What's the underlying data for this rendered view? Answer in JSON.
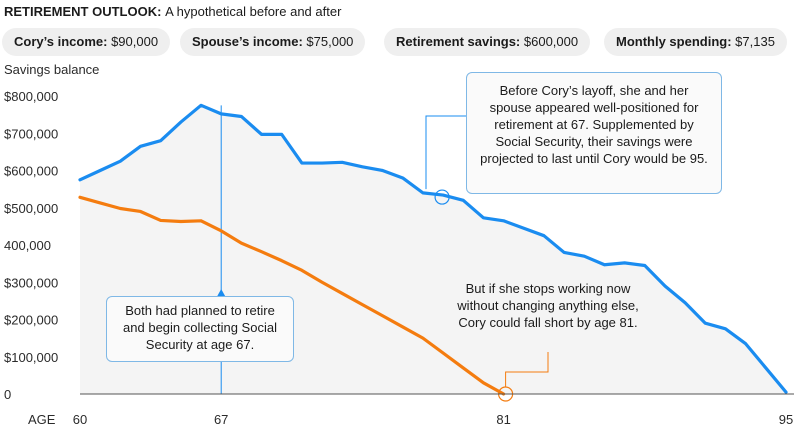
{
  "header": {
    "title_bold": "RETIREMENT OUTLOOK:",
    "title_rest": "A hypothetical before and after"
  },
  "pills": [
    {
      "label": "Cory’s income:",
      "value": "$90,000"
    },
    {
      "label": "Spouse’s income:",
      "value": "$75,000"
    },
    {
      "label": "Retirement savings:",
      "value": "$600,000"
    },
    {
      "label": "Monthly spending:",
      "value": "$7,135"
    }
  ],
  "annotations": {
    "planned": "Both had planned to retire and begin collecting Social Security at age 67.",
    "before": "Before Cory’s layoff, she and her spouse appeared well-positioned for retirement at 67. Supplemented by Social Security, their savings were projected to last until Cory would be 95.",
    "after": "But if she stops working now without changing anything else, Cory could fall short by age 81."
  },
  "colors": {
    "before": "#1a8cf0",
    "after": "#f47c0f",
    "fill": "#f4f4f4",
    "callout_border": "#7fb8e6"
  },
  "chart_data": {
    "type": "line",
    "ylabel": "Savings balance",
    "xlabel": "AGE",
    "xlim": [
      60,
      95
    ],
    "ylim": [
      0,
      800000
    ],
    "x_ticks": [
      60,
      67,
      81,
      95
    ],
    "y_ticks": [
      {
        "value": 0,
        "label": "0"
      },
      {
        "value": 100000,
        "label": "$100,000"
      },
      {
        "value": 200000,
        "label": "$200,000"
      },
      {
        "value": 300000,
        "label": "$300,000"
      },
      {
        "value": 400000,
        "label": "400,000"
      },
      {
        "value": 500000,
        "label": "$500,000"
      },
      {
        "value": 600000,
        "label": "$600,000"
      },
      {
        "value": 700000,
        "label": "$700,000"
      },
      {
        "value": 800000,
        "label": "$800,000"
      }
    ],
    "grid": false,
    "series": [
      {
        "key": "before",
        "x": [
          60,
          61,
          62,
          63,
          64,
          65,
          66,
          67,
          68,
          69,
          70,
          71,
          72,
          73,
          74,
          75,
          76,
          77,
          78,
          79,
          80,
          81,
          82,
          83,
          84,
          85,
          86,
          87,
          88,
          89,
          90,
          91,
          92,
          93,
          94,
          95
        ],
        "values": [
          575000,
          600000,
          625000,
          665000,
          680000,
          730000,
          775000,
          752000,
          745000,
          697000,
          697000,
          620000,
          620000,
          622000,
          610000,
          600000,
          580000,
          540000,
          534000,
          520000,
          473000,
          465000,
          445000,
          425000,
          380000,
          370000,
          347000,
          352000,
          345000,
          290000,
          245000,
          190000,
          175000,
          135000,
          70000,
          5000
        ]
      },
      {
        "key": "after",
        "x": [
          60,
          61,
          62,
          63,
          64,
          65,
          66,
          67,
          68,
          69,
          70,
          71,
          72,
          73,
          74,
          75,
          76,
          77,
          78,
          79,
          80,
          81
        ],
        "values": [
          528000,
          513000,
          498000,
          490000,
          466000,
          463000,
          465000,
          438000,
          405000,
          382000,
          358000,
          332000,
          300000,
          270000,
          240000,
          210000,
          180000,
          150000,
          110000,
          70000,
          30000,
          0
        ]
      }
    ]
  }
}
